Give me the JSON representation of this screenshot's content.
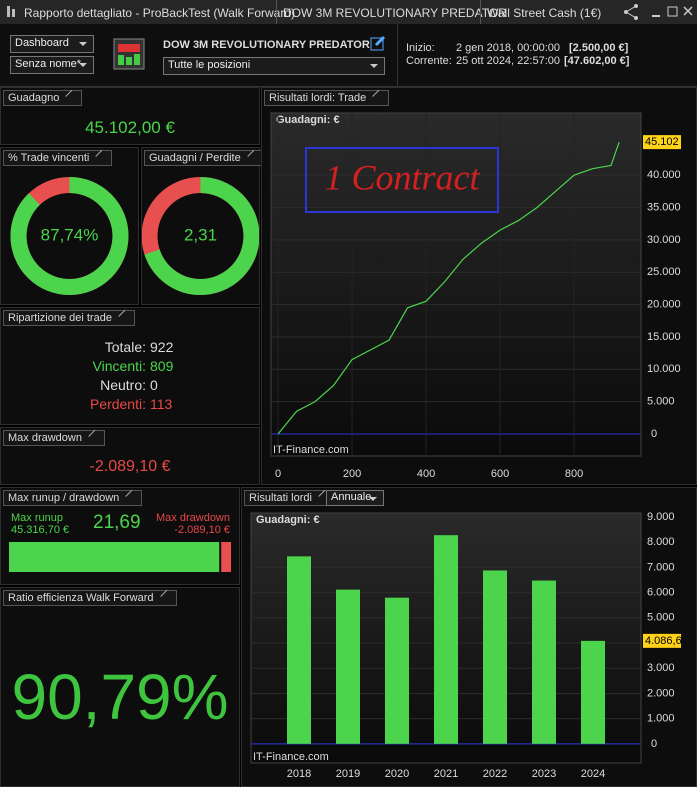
{
  "window": {
    "title": "Rapporto dettagliato - ProBackTest (Walk Forward)",
    "tabs": [
      "DOW 3M REVOLUTIONARY  PREDATOR",
      "Wall Street Cash (1€)"
    ]
  },
  "toolbar": {
    "view": "Dashboard",
    "name": "Senza nome*",
    "strategy": "DOW 3M REVOLUTIONARY  PREDATOR",
    "positions": "Tutte le posizioni",
    "start": {
      "label": "Inizio:",
      "date": "2 gen 2018, 00:00:00",
      "capital": "[2.500,00 €]"
    },
    "current": {
      "label": "Corrente:",
      "date": "25 ott 2024, 22:57:00",
      "capital": "[47.602,00 €]"
    }
  },
  "gain": {
    "title": "Guadagno",
    "value": "45.102,00 €"
  },
  "win_rate": {
    "title": "% Trade vincenti",
    "value": 87.74,
    "label": "87,74%"
  },
  "profit_loss": {
    "title": "Guadagni / Perdite",
    "value": 2.31,
    "label": "2,31"
  },
  "breakdown": {
    "title": "Ripartizione dei trade",
    "rows": [
      [
        "Totale:",
        "922"
      ],
      [
        "Vincenti:",
        "809"
      ],
      [
        "Neutro:",
        "0"
      ],
      [
        "Perdenti:",
        "113"
      ]
    ]
  },
  "max_drawdown": {
    "title": "Max drawdown",
    "value": "-2.089,10 €"
  },
  "runup_drawdown": {
    "title": "Max runup / drawdown",
    "runup_label": "Max runup",
    "runup": {
      "value": 45316.7,
      "label": "45.316,70 €"
    },
    "ratio": "21,69",
    "drawdown_label": "Max drawdown",
    "drawdown": {
      "value": -2089.1,
      "label": "-2.089,10 €"
    }
  },
  "efficiency": {
    "title": "Ratio efficienza Walk Forward",
    "value": "90,79%"
  },
  "chart_data": [
    {
      "type": "line",
      "panel_title": "Risultati lordi: Trade",
      "title": "Guadagni: €",
      "watermark": "IT-Finance.com",
      "annotation": "1 Contract",
      "color": "#4cd44c",
      "baseline_color": "#2a36d8",
      "x": [
        0,
        50,
        100,
        150,
        200,
        250,
        300,
        350,
        400,
        450,
        500,
        550,
        600,
        650,
        700,
        750,
        800,
        850,
        900,
        922
      ],
      "values": [
        0,
        3500,
        5000,
        7500,
        11500,
        13000,
        14500,
        19500,
        20500,
        23500,
        27000,
        29500,
        31500,
        33000,
        35000,
        37500,
        40000,
        41000,
        41500,
        45102
      ],
      "value_labels": [
        null,
        null,
        null,
        null,
        null,
        null,
        null,
        null,
        null,
        null,
        null,
        null,
        null,
        null,
        null,
        null,
        null,
        null,
        null,
        "45.102"
      ],
      "xlim": [
        -19,
        981
      ],
      "ylim": [
        -3400,
        49600
      ],
      "xticks": [
        0,
        200,
        400,
        600,
        800
      ],
      "yticks": [
        0,
        {
          "value": 5000,
          "label": "5.000"
        },
        {
          "value": 10000,
          "label": "10.000"
        },
        {
          "value": 15000,
          "label": "15.000"
        },
        {
          "value": 20000,
          "label": "20.000"
        },
        {
          "value": 25000,
          "label": "25.000"
        },
        {
          "value": 30000,
          "label": "30.000"
        },
        {
          "value": 35000,
          "label": "35.000"
        },
        {
          "value": 40000,
          "label": "40.000"
        }
      ],
      "grid": true
    },
    {
      "type": "bar",
      "panel_title": "Risultati lordi",
      "period": "Annuale",
      "title": "Guadagni: €",
      "watermark": "IT-Finance.com",
      "color": "#4cd44c",
      "baseline_color": "#2a36d8",
      "categories": [
        "2018",
        "2019",
        "2020",
        "2021",
        "2022",
        "2023",
        "2024"
      ],
      "values": [
        7440,
        6120,
        5800,
        8280,
        6880,
        6480,
        4086.6
      ],
      "value_labels": [
        null,
        null,
        null,
        null,
        null,
        null,
        "4.086,6"
      ],
      "ylim": [
        -760,
        9160
      ],
      "yticks": [
        0,
        {
          "value": 1000,
          "label": "1.000"
        },
        {
          "value": 2000,
          "label": "2.000"
        },
        {
          "value": 3000,
          "label": "3.000"
        },
        {
          "value": 4000,
          "label": "4.000"
        },
        {
          "value": 5000,
          "label": "5.000"
        },
        {
          "value": 6000,
          "label": "6.000"
        },
        {
          "value": 7000,
          "label": "7.000"
        },
        {
          "value": 8000,
          "label": "8.000"
        },
        {
          "value": 9000,
          "label": "9.000"
        }
      ],
      "grid": true
    }
  ]
}
